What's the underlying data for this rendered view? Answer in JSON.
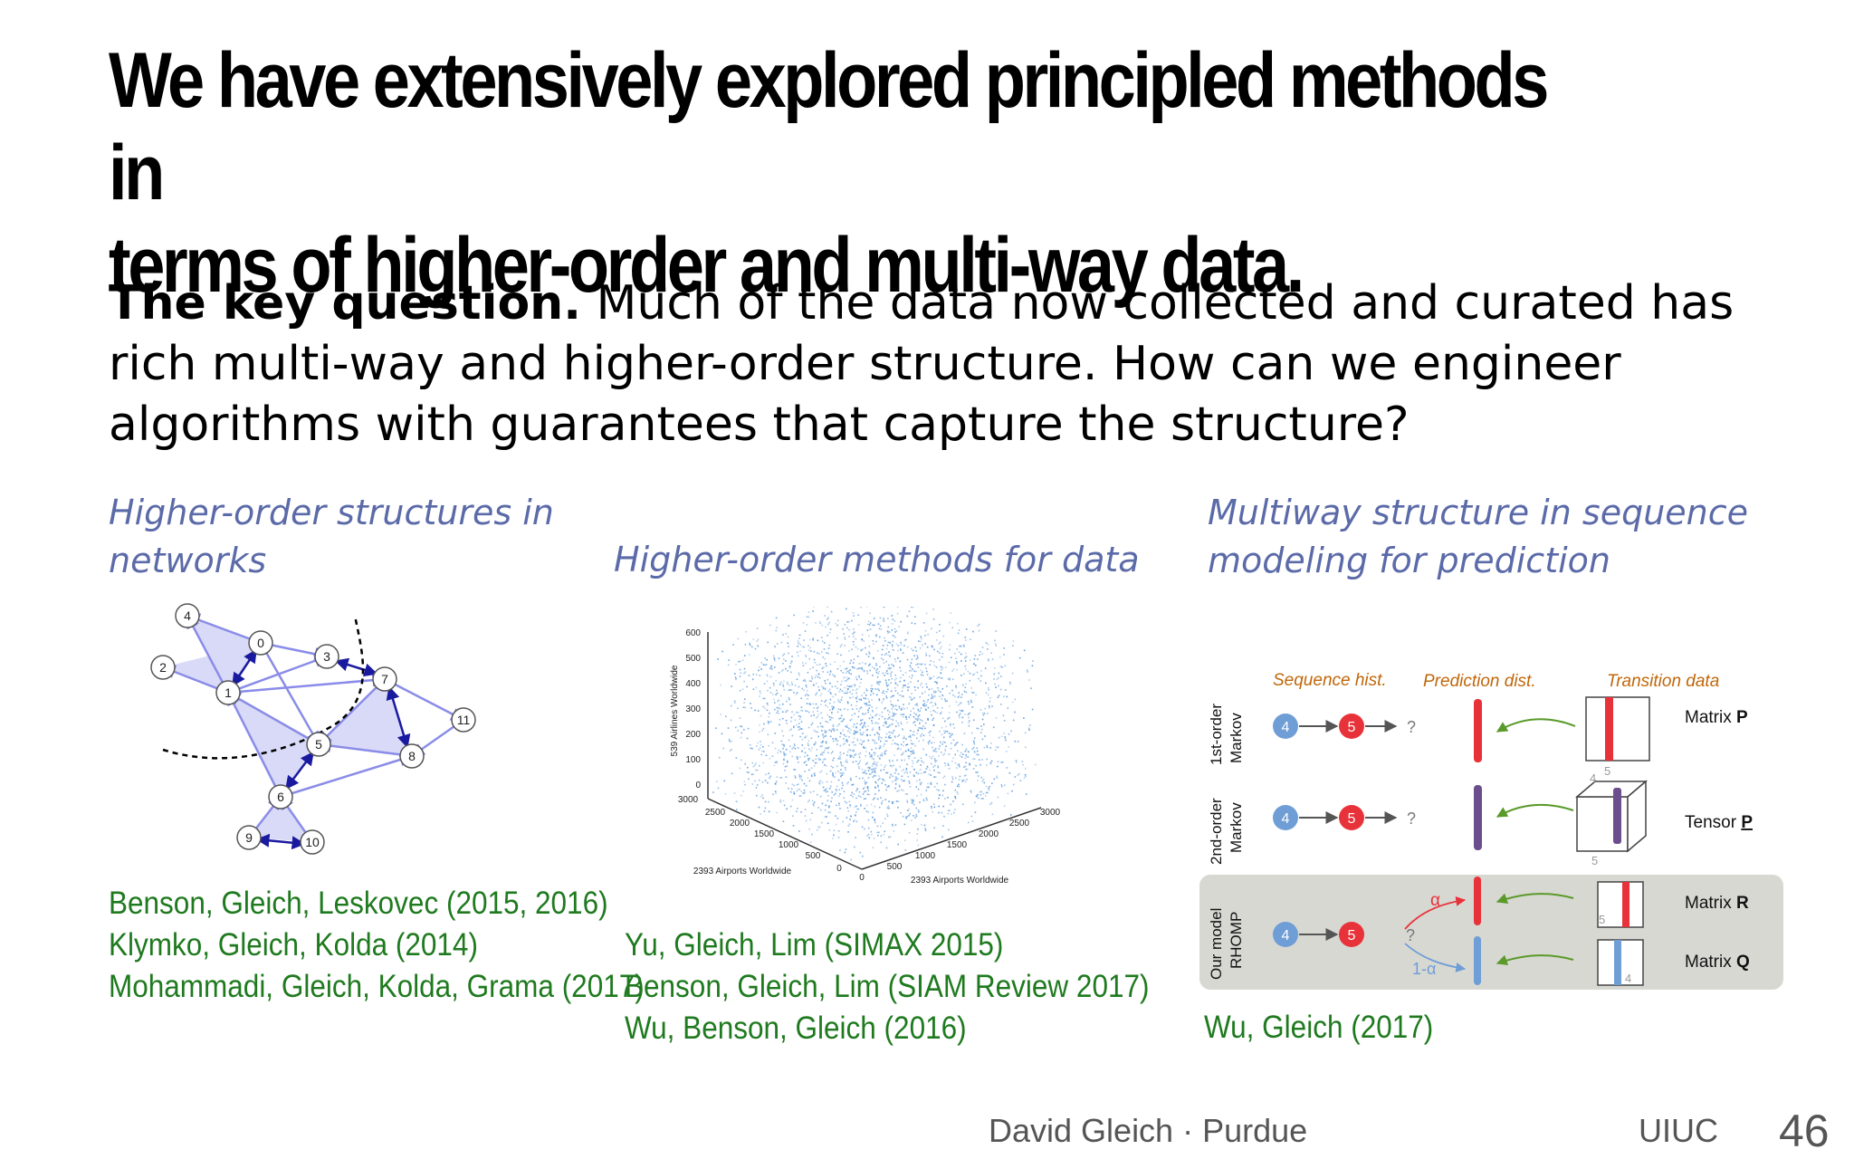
{
  "slide": {
    "title_lines": [
      "We have extensively explored principled methods in",
      "terms of higher-order and multi-way data."
    ],
    "question_bold": "The key question.",
    "question_text": "Much of the data now collected and curated has rich multi-way and higher-order structure. How can we engineer algorithms with guarantees that capture the structure?"
  },
  "columns": {
    "networks": {
      "heading_lines": [
        "Higher-order structures in",
        "networks"
      ],
      "refs": [
        "Benson, Gleich, Leskovec (2015, 2016)",
        "Klymko, Gleich, Kolda (2014)",
        "Mohammadi, Gleich, Kolda, Grama (2017)"
      ],
      "node_labels": [
        "0",
        "1",
        "2",
        "3",
        "4",
        "5",
        "6",
        "7",
        "8",
        "9",
        "10",
        "11"
      ]
    },
    "methods": {
      "heading_lines": [
        "Higher-order methods for data"
      ],
      "refs": [
        "Yu, Gleich, Lim (SIMAX 2015)",
        "Benson, Gleich, Lim (SIAM Review 2017)",
        "Wu, Benson, Gleich (2016)"
      ],
      "z_axis_label": "539 Airlines Worldwide",
      "x_axis_label": "2393 Airports Worldwide",
      "y_axis_label": "2393 Airports Worldwide",
      "z_ticks": [
        "600",
        "500",
        "400",
        "300",
        "200",
        "100",
        "0"
      ],
      "x_ticks": [
        "3000",
        "2500",
        "2000",
        "1500",
        "1000",
        "500",
        "0"
      ],
      "y_ticks": [
        "0",
        "500",
        "1000",
        "1500",
        "2000",
        "2500",
        "3000"
      ]
    },
    "sequence": {
      "heading_lines": [
        "Multiway structure in sequence",
        "modeling for prediction"
      ],
      "refs": [
        "Wu, Gleich (2017)"
      ],
      "col_headers": [
        "Sequence hist.",
        "Prediction dist.",
        "Transition data"
      ],
      "row_labels": [
        [
          "1st-order",
          "Markov"
        ],
        [
          "2nd-order",
          "Markov"
        ],
        [
          "Our model",
          "RHOMP"
        ]
      ],
      "state_a": "4",
      "state_b": "5",
      "unknown": "?",
      "alpha": "α",
      "one_minus_alpha": "1-α",
      "index_5": "5",
      "index_4": "4",
      "matrix_p_prefix": "Matrix ",
      "tensor_p_prefix": "Tensor ",
      "matrix_r_prefix": "Matrix ",
      "matrix_q_prefix": "Matrix ",
      "p": "P",
      "r": "R",
      "q": "Q"
    }
  },
  "footer": {
    "author": "David Gleich · Purdue",
    "venue": "UIUC",
    "page": "46"
  },
  "colors": {
    "heading": "#5b6aa8",
    "reference": "#1f7a1f",
    "graph_edge": "#8a8ce8",
    "graph_fill": "#d9daf7",
    "scatter": "#4a8fd6",
    "red_state": "#e8323a",
    "blue_state": "#6f9dd6",
    "purple_bar": "#6b4e8c"
  }
}
